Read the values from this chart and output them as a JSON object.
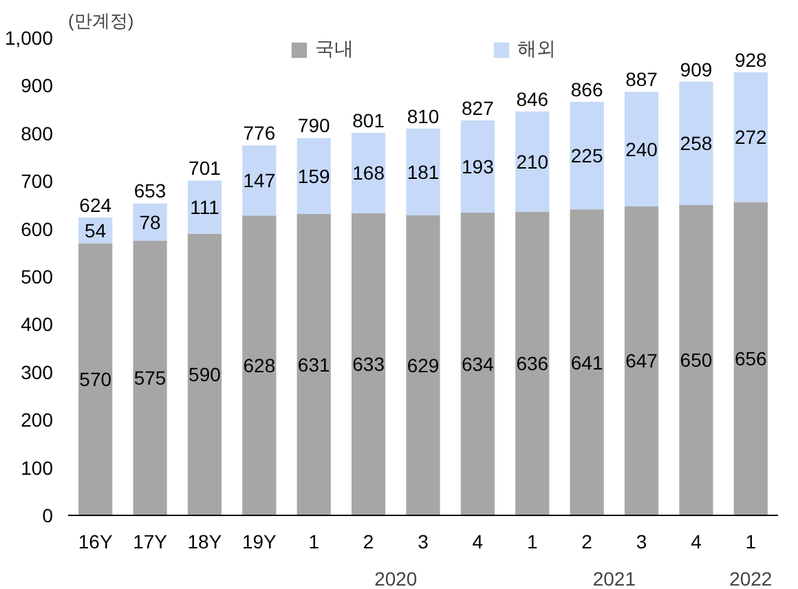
{
  "chart_data": {
    "type": "bar",
    "stacked": true,
    "ylabel": "(만계정)",
    "categories": [
      "16Y",
      "17Y",
      "18Y",
      "19Y",
      "1",
      "2",
      "3",
      "4",
      "1",
      "2",
      "3",
      "4",
      "1"
    ],
    "series": [
      {
        "name": "국내",
        "color": "#a6a6a6",
        "values": [
          570,
          575,
          590,
          628,
          631,
          633,
          629,
          634,
          636,
          641,
          647,
          650,
          656
        ]
      },
      {
        "name": "해외",
        "color": "#c6d9f8",
        "values": [
          54,
          78,
          111,
          147,
          159,
          168,
          181,
          193,
          210,
          225,
          240,
          258,
          272
        ]
      }
    ],
    "totals": [
      "624",
      "653",
      "701",
      "776",
      "790",
      "801",
      "810",
      "827",
      "846",
      "866",
      "887",
      "909",
      "928"
    ],
    "ylim": [
      0,
      1000
    ],
    "yticks": [
      0,
      100,
      200,
      300,
      400,
      500,
      600,
      700,
      800,
      900,
      {
        "value": 1000,
        "label": "1,000"
      }
    ],
    "data_labels": true,
    "grid": false,
    "legend": "top",
    "annotations": [
      "2020",
      "2021",
      "2022"
    ]
  }
}
